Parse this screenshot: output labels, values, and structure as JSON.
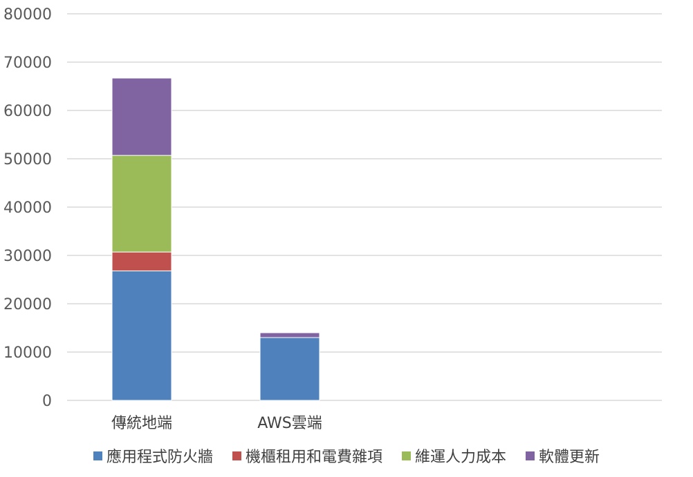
{
  "chart_data": {
    "type": "bar",
    "stacked": true,
    "categories": [
      "傳統地端",
      "AWS雲端"
    ],
    "series": [
      {
        "name": "應用程式防火牆",
        "color": "#4F81BD",
        "values": [
          26800,
          13000
        ]
      },
      {
        "name": "機櫃租用和電費雜項",
        "color": "#C0504D",
        "values": [
          3900,
          0
        ]
      },
      {
        "name": "維運人力成本",
        "color": "#9BBB59",
        "values": [
          20000,
          0
        ]
      },
      {
        "name": "軟體更新",
        "color": "#8064A2",
        "values": [
          16000,
          1000
        ]
      }
    ],
    "title": "",
    "xlabel": "",
    "ylabel": "",
    "ylim": [
      0,
      80000
    ],
    "yticks": [
      "0",
      "10000",
      "20000",
      "30000",
      "40000",
      "50000",
      "60000",
      "70000",
      "80000"
    ],
    "grid": true,
    "legend_position": "bottom"
  }
}
